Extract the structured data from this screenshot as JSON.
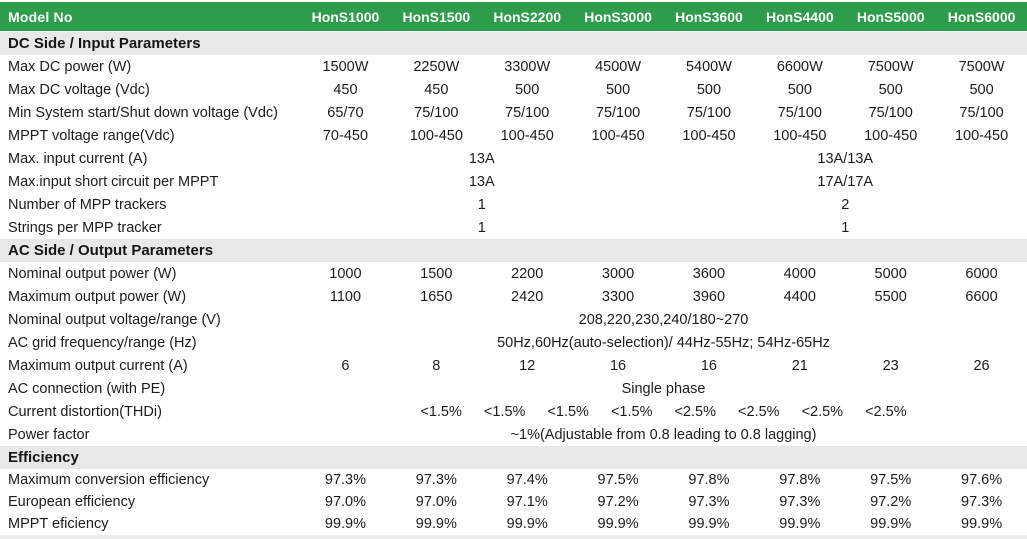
{
  "colors": {
    "accent_green": "#2e9d4b",
    "section_bg": "#e8e8e9",
    "text": "#1c1c1c"
  },
  "header": {
    "label": "Model No",
    "models": [
      "HonS1000",
      "HonS1500",
      "HonS2200",
      "HonS3000",
      "HonS3600",
      "HonS4400",
      "HonS5000",
      "HonS6000"
    ]
  },
  "dc": {
    "title": "DC Side / Input Parameters",
    "rows": [
      {
        "label": "Max DC power (W)",
        "values": [
          "1500W",
          "2250W",
          "3300W",
          "4500W",
          "5400W",
          "6600W",
          "7500W",
          "7500W"
        ]
      },
      {
        "label": "Max DC voltage (Vdc)",
        "values": [
          "450",
          "450",
          "500",
          "500",
          "500",
          "500",
          "500",
          "500"
        ]
      },
      {
        "label": "Min System start/Shut down voltage (Vdc)",
        "values": [
          "65/70",
          "75/100",
          "75/100",
          "75/100",
          "75/100",
          "75/100",
          "75/100",
          "75/100"
        ]
      },
      {
        "label": "MPPT voltage range(Vdc)",
        "values": [
          "70-450",
          "100-450",
          "100-450",
          "100-450",
          "100-450",
          "100-450",
          "100-450",
          "100-450"
        ]
      },
      {
        "label": "Max. input current (A)",
        "left": "13A",
        "right": "13A/13A"
      },
      {
        "label": "Max.input short circuit per MPPT",
        "left": "13A",
        "right": "17A/17A"
      },
      {
        "label": "Number of MPP trackers",
        "left": "1",
        "right": "2"
      },
      {
        "label": "Strings per MPP tracker",
        "left": "1",
        "right": "1"
      }
    ]
  },
  "ac": {
    "title": "AC Side / Output Parameters",
    "rows": [
      {
        "label": "Nominal output power (W)",
        "values": [
          "1000",
          "1500",
          "2200",
          "3000",
          "3600",
          "4000",
          "5000",
          "6000"
        ]
      },
      {
        "label": "Maximum output power (W)",
        "values": [
          "1100",
          "1650",
          "2420",
          "3300",
          "3960",
          "4400",
          "5500",
          "6600"
        ]
      },
      {
        "label": "Nominal output voltage/range (V)",
        "span": "208,220,230,240/180~270"
      },
      {
        "label": "AC grid frequency/range (Hz)",
        "span": "50Hz,60Hz(auto-selection)/ 44Hz-55Hz; 54Hz-65Hz"
      },
      {
        "label": "Maximum output current (A)",
        "values": [
          "6",
          "8",
          "12",
          "16",
          "16",
          "21",
          "23",
          "26"
        ]
      },
      {
        "label": "AC connection (with PE)",
        "span": "Single phase"
      },
      {
        "label": "Current distortion(THDi)",
        "spread": [
          "<1.5%",
          "<1.5%",
          "<1.5%",
          "<1.5%",
          "<2.5%",
          "<2.5%",
          "<2.5%",
          "<2.5%"
        ]
      },
      {
        "label": "Power factor",
        "span": "~1%(Adjustable from 0.8 leading to 0.8 lagging)"
      }
    ]
  },
  "efficiency": {
    "title": "Efficiency",
    "rows": [
      {
        "label": "Maximum conversion efficiency",
        "values": [
          "97.3%",
          "97.3%",
          "97.4%",
          "97.5%",
          "97.8%",
          "97.8%",
          "97.5%",
          "97.6%"
        ]
      },
      {
        "label": "European efficiency",
        "values": [
          "97.0%",
          "97.0%",
          "97.1%",
          "97.2%",
          "97.3%",
          "97.3%",
          "97.2%",
          "97.3%"
        ]
      },
      {
        "label": "MPPT eficiency",
        "values": [
          "99.9%",
          "99.9%",
          "99.9%",
          "99.9%",
          "99.9%",
          "99.9%",
          "99.9%",
          "99.9%"
        ]
      }
    ]
  }
}
